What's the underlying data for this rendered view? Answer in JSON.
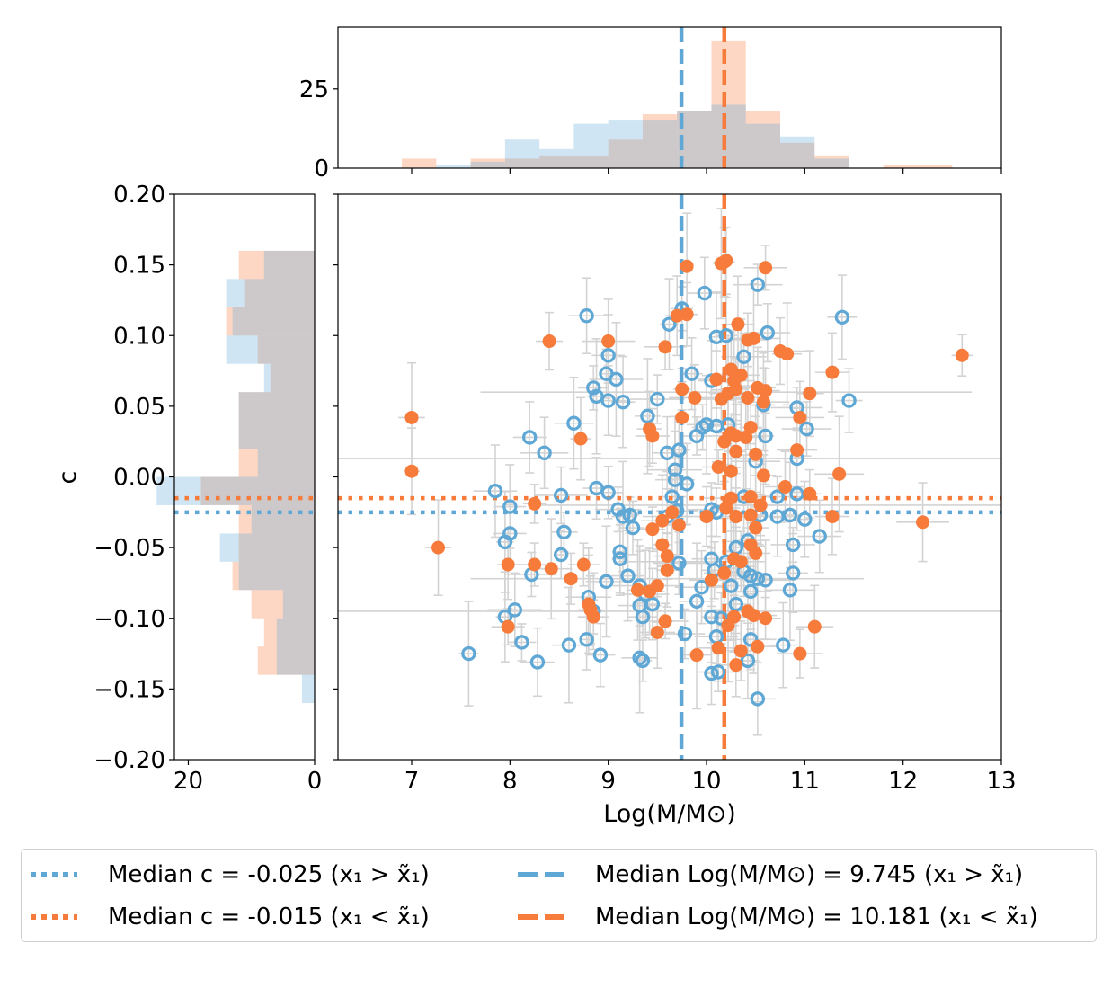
{
  "colors": {
    "blue": "#5fa8d6",
    "orange": "#f77b3b",
    "blue_fill": "#c9e1f1",
    "orange_fill": "#fdd3bc",
    "errorbar": "#d3d3d3"
  },
  "chart_data": {
    "type": "scatter",
    "xlabel": "Log(M/M⊙)",
    "ylabel": "c",
    "xlim": [
      6.25,
      13
    ],
    "ylim": [
      -0.2,
      0.2
    ],
    "xticks": [
      "7",
      "8",
      "9",
      "10",
      "11",
      "12",
      "13"
    ],
    "yticks": [
      "−0.20",
      "−0.15",
      "−0.10",
      "−0.05",
      "0.00",
      "0.05",
      "0.10",
      "0.15",
      "0.20"
    ],
    "top_hist_yticks": [
      "0",
      "25"
    ],
    "left_hist_xticks": [
      "20",
      "0"
    ],
    "medians": {
      "blue_c": -0.025,
      "orange_c": -0.015,
      "blue_mass": 9.745,
      "orange_mass": 10.181
    },
    "series": [
      {
        "name": "x1 > median x1",
        "marker": "open-circle",
        "color": "#5fa8d6",
        "points": [
          [
            8.78,
            0.114
          ],
          [
            9.75,
            0.119
          ],
          [
            9.98,
            0.13
          ],
          [
            10.52,
            0.136
          ],
          [
            11.38,
            0.113
          ],
          [
            10.62,
            0.102
          ],
          [
            10.1,
            0.099
          ],
          [
            10.2,
            0.1
          ],
          [
            9.62,
            0.108
          ],
          [
            9.0,
            0.086
          ],
          [
            8.98,
            0.073
          ],
          [
            9.08,
            0.069
          ],
          [
            8.85,
            0.063
          ],
          [
            8.88,
            0.057
          ],
          [
            9.0,
            0.054
          ],
          [
            9.15,
            0.053
          ],
          [
            9.5,
            0.055
          ],
          [
            9.85,
            0.073
          ],
          [
            10.05,
            0.068
          ],
          [
            10.38,
            0.085
          ],
          [
            11.45,
            0.054
          ],
          [
            10.92,
            0.049
          ],
          [
            11.02,
            0.034
          ],
          [
            10.58,
            0.051
          ],
          [
            10.22,
            0.037
          ],
          [
            10.0,
            0.037
          ],
          [
            9.96,
            0.035
          ],
          [
            10.1,
            0.036
          ],
          [
            9.9,
            0.029
          ],
          [
            8.65,
            0.038
          ],
          [
            9.4,
            0.043
          ],
          [
            8.2,
            0.028
          ],
          [
            8.35,
            0.017
          ],
          [
            9.6,
            0.017
          ],
          [
            9.72,
            0.019
          ],
          [
            10.6,
            0.029
          ],
          [
            10.92,
            0.013
          ],
          [
            9.68,
            0.005
          ],
          [
            10.5,
            0.011
          ],
          [
            9.68,
            -0.002
          ],
          [
            9.8,
            -0.005
          ],
          [
            8.88,
            -0.008
          ],
          [
            9.0,
            -0.011
          ],
          [
            7.85,
            -0.01
          ],
          [
            8.52,
            -0.013
          ],
          [
            9.65,
            -0.014
          ],
          [
            10.38,
            -0.014
          ],
          [
            10.72,
            -0.014
          ],
          [
            10.92,
            -0.012
          ],
          [
            8.0,
            -0.021
          ],
          [
            9.1,
            -0.023
          ],
          [
            9.15,
            -0.028
          ],
          [
            9.22,
            -0.027
          ],
          [
            9.7,
            -0.024
          ],
          [
            9.6,
            -0.028
          ],
          [
            10.05,
            -0.023
          ],
          [
            10.1,
            -0.025
          ],
          [
            10.55,
            -0.027
          ],
          [
            10.72,
            -0.028
          ],
          [
            10.85,
            -0.027
          ],
          [
            11.0,
            -0.03
          ],
          [
            8.0,
            -0.04
          ],
          [
            8.55,
            -0.039
          ],
          [
            9.25,
            -0.036
          ],
          [
            7.95,
            -0.046
          ],
          [
            8.52,
            -0.055
          ],
          [
            9.12,
            -0.053
          ],
          [
            9.12,
            -0.058
          ],
          [
            10.42,
            -0.045
          ],
          [
            10.88,
            -0.048
          ],
          [
            11.15,
            -0.042
          ],
          [
            9.72,
            -0.061
          ],
          [
            10.05,
            -0.058
          ],
          [
            10.08,
            -0.066
          ],
          [
            10.2,
            -0.06
          ],
          [
            10.3,
            -0.05
          ],
          [
            10.38,
            -0.067
          ],
          [
            10.45,
            -0.07
          ],
          [
            10.52,
            -0.072
          ],
          [
            10.6,
            -0.073
          ],
          [
            10.88,
            -0.068
          ],
          [
            8.22,
            -0.069
          ],
          [
            9.2,
            -0.07
          ],
          [
            8.98,
            -0.074
          ],
          [
            9.95,
            -0.078
          ],
          [
            10.25,
            -0.077
          ],
          [
            10.45,
            -0.081
          ],
          [
            10.85,
            -0.08
          ],
          [
            9.32,
            -0.077
          ],
          [
            9.38,
            -0.083
          ],
          [
            9.45,
            -0.09
          ],
          [
            9.9,
            -0.088
          ],
          [
            10.3,
            -0.09
          ],
          [
            8.8,
            -0.085
          ],
          [
            8.85,
            -0.095
          ],
          [
            9.32,
            -0.091
          ],
          [
            9.35,
            -0.099
          ],
          [
            8.05,
            -0.094
          ],
          [
            7.95,
            -0.099
          ],
          [
            10.05,
            -0.099
          ],
          [
            10.15,
            -0.1
          ],
          [
            8.78,
            -0.115
          ],
          [
            8.6,
            -0.119
          ],
          [
            8.12,
            -0.117
          ],
          [
            9.78,
            -0.111
          ],
          [
            10.1,
            -0.113
          ],
          [
            10.45,
            -0.115
          ],
          [
            10.78,
            -0.119
          ],
          [
            7.58,
            -0.125
          ],
          [
            8.92,
            -0.126
          ],
          [
            9.32,
            -0.128
          ],
          [
            9.35,
            -0.13
          ],
          [
            10.42,
            -0.13
          ],
          [
            8.28,
            -0.131
          ],
          [
            10.05,
            -0.139
          ],
          [
            10.12,
            -0.138
          ],
          [
            10.52,
            -0.157
          ]
        ]
      },
      {
        "name": "x1 < median x1",
        "marker": "filled-circle",
        "color": "#f77b3b",
        "points": [
          [
            10.15,
            0.151
          ],
          [
            10.18,
            0.152
          ],
          [
            10.2,
            0.153
          ],
          [
            10.6,
            0.148
          ],
          [
            9.8,
            0.149
          ],
          [
            9.7,
            0.114
          ],
          [
            9.8,
            0.115
          ],
          [
            10.32,
            0.108
          ],
          [
            10.42,
            0.097
          ],
          [
            10.48,
            0.098
          ],
          [
            10.75,
            0.089
          ],
          [
            10.82,
            0.087
          ],
          [
            12.6,
            0.086
          ],
          [
            9.58,
            0.092
          ],
          [
            9.0,
            0.096
          ],
          [
            8.4,
            0.096
          ],
          [
            10.25,
            0.076
          ],
          [
            10.35,
            0.072
          ],
          [
            10.28,
            0.068
          ],
          [
            10.1,
            0.069
          ],
          [
            10.15,
            0.055
          ],
          [
            10.22,
            0.059
          ],
          [
            10.3,
            0.062
          ],
          [
            10.52,
            0.063
          ],
          [
            10.6,
            0.061
          ],
          [
            10.42,
            0.056
          ],
          [
            11.28,
            0.074
          ],
          [
            11.05,
            0.059
          ],
          [
            9.75,
            0.062
          ],
          [
            9.88,
            0.056
          ],
          [
            10.58,
            0.053
          ],
          [
            10.95,
            0.042
          ],
          [
            9.75,
            0.042
          ],
          [
            7.0,
            0.042
          ],
          [
            10.45,
            0.035
          ],
          [
            10.25,
            0.031
          ],
          [
            10.3,
            0.029
          ],
          [
            10.4,
            0.028
          ],
          [
            10.18,
            0.025
          ],
          [
            10.3,
            0.018
          ],
          [
            9.42,
            0.034
          ],
          [
            9.45,
            0.029
          ],
          [
            8.72,
            0.027
          ],
          [
            10.92,
            0.019
          ],
          [
            10.5,
            0.016
          ],
          [
            10.12,
            0.007
          ],
          [
            10.25,
            0.004
          ],
          [
            7.0,
            0.004
          ],
          [
            10.58,
            0.001
          ],
          [
            10.8,
            -0.007
          ],
          [
            11.35,
            0.002
          ],
          [
            11.05,
            -0.012
          ],
          [
            10.25,
            -0.015
          ],
          [
            10.45,
            -0.014
          ],
          [
            10.55,
            -0.02
          ],
          [
            10.45,
            -0.027
          ],
          [
            10.3,
            -0.028
          ],
          [
            10.2,
            -0.022
          ],
          [
            10.0,
            -0.028
          ],
          [
            9.65,
            -0.025
          ],
          [
            9.55,
            -0.031
          ],
          [
            9.72,
            -0.034
          ],
          [
            9.45,
            -0.037
          ],
          [
            8.25,
            -0.019
          ],
          [
            11.28,
            -0.028
          ],
          [
            12.2,
            -0.032
          ],
          [
            10.5,
            -0.036
          ],
          [
            9.55,
            -0.048
          ],
          [
            9.6,
            -0.056
          ],
          [
            10.45,
            -0.048
          ],
          [
            10.5,
            -0.054
          ],
          [
            10.35,
            -0.06
          ],
          [
            10.28,
            -0.058
          ],
          [
            10.18,
            -0.068
          ],
          [
            10.05,
            -0.073
          ],
          [
            9.6,
            -0.066
          ],
          [
            9.3,
            -0.08
          ],
          [
            9.42,
            -0.081
          ],
          [
            9.5,
            -0.077
          ],
          [
            8.25,
            -0.062
          ],
          [
            7.98,
            -0.062
          ],
          [
            8.42,
            -0.065
          ],
          [
            8.62,
            -0.072
          ],
          [
            8.75,
            -0.062
          ],
          [
            8.8,
            -0.09
          ],
          [
            8.82,
            -0.094
          ],
          [
            8.85,
            -0.099
          ],
          [
            7.27,
            -0.05
          ],
          [
            7.98,
            -0.106
          ],
          [
            9.5,
            -0.11
          ],
          [
            9.58,
            -0.102
          ],
          [
            10.28,
            -0.099
          ],
          [
            10.42,
            -0.095
          ],
          [
            10.48,
            -0.098
          ],
          [
            10.22,
            -0.105
          ],
          [
            10.35,
            -0.123
          ],
          [
            10.52,
            -0.12
          ],
          [
            9.9,
            -0.126
          ],
          [
            10.12,
            -0.121
          ],
          [
            10.95,
            -0.125
          ],
          [
            11.1,
            -0.106
          ],
          [
            10.3,
            -0.133
          ],
          [
            10.6,
            -0.1
          ]
        ]
      }
    ],
    "hist_mass": {
      "bins": [
        6.9,
        7.25,
        7.6,
        7.95,
        8.3,
        8.65,
        9.0,
        9.35,
        9.7,
        10.05,
        10.4,
        10.75,
        11.1,
        11.45,
        11.8,
        12.15,
        12.5,
        12.85
      ],
      "blue": [
        0,
        1,
        2,
        9,
        6,
        14,
        15,
        15,
        18,
        20,
        14,
        10,
        3,
        0,
        0,
        0,
        0
      ],
      "orange": [
        3,
        0,
        3,
        3,
        4,
        4,
        9,
        17,
        18,
        40,
        18,
        8,
        4,
        0,
        1,
        1,
        0
      ]
    },
    "hist_c": {
      "bins": [
        -0.16,
        -0.14,
        -0.12,
        -0.1,
        -0.08,
        -0.06,
        -0.04,
        -0.02,
        0.0,
        0.02,
        0.04,
        0.06,
        0.08,
        0.1,
        0.12,
        0.14,
        0.16
      ],
      "blue": [
        2,
        6,
        6,
        5,
        12,
        15,
        10,
        25,
        9,
        12,
        12,
        8,
        14,
        13,
        14,
        8,
        2
      ],
      "orange": [
        0,
        9,
        8,
        10,
        13,
        12,
        12,
        18,
        12,
        12,
        12,
        7,
        9,
        14,
        11,
        12,
        3
      ]
    }
  },
  "legend": {
    "items": [
      {
        "label": "Median c = -0.025 (x₁ > x̃₁)",
        "style": "dotted",
        "color": "#5fa8d6"
      },
      {
        "label": "Median c = -0.015 (x₁ < x̃₁)",
        "style": "dotted",
        "color": "#f77b3b"
      },
      {
        "label": "Median Log(M/M⊙) = 9.745 (x₁ > x̃₁)",
        "style": "dashed",
        "color": "#5fa8d6"
      },
      {
        "label": "Median Log(M/M⊙) = 10.181 (x₁ < x̃₁)",
        "style": "dashed",
        "color": "#f77b3b"
      }
    ]
  }
}
